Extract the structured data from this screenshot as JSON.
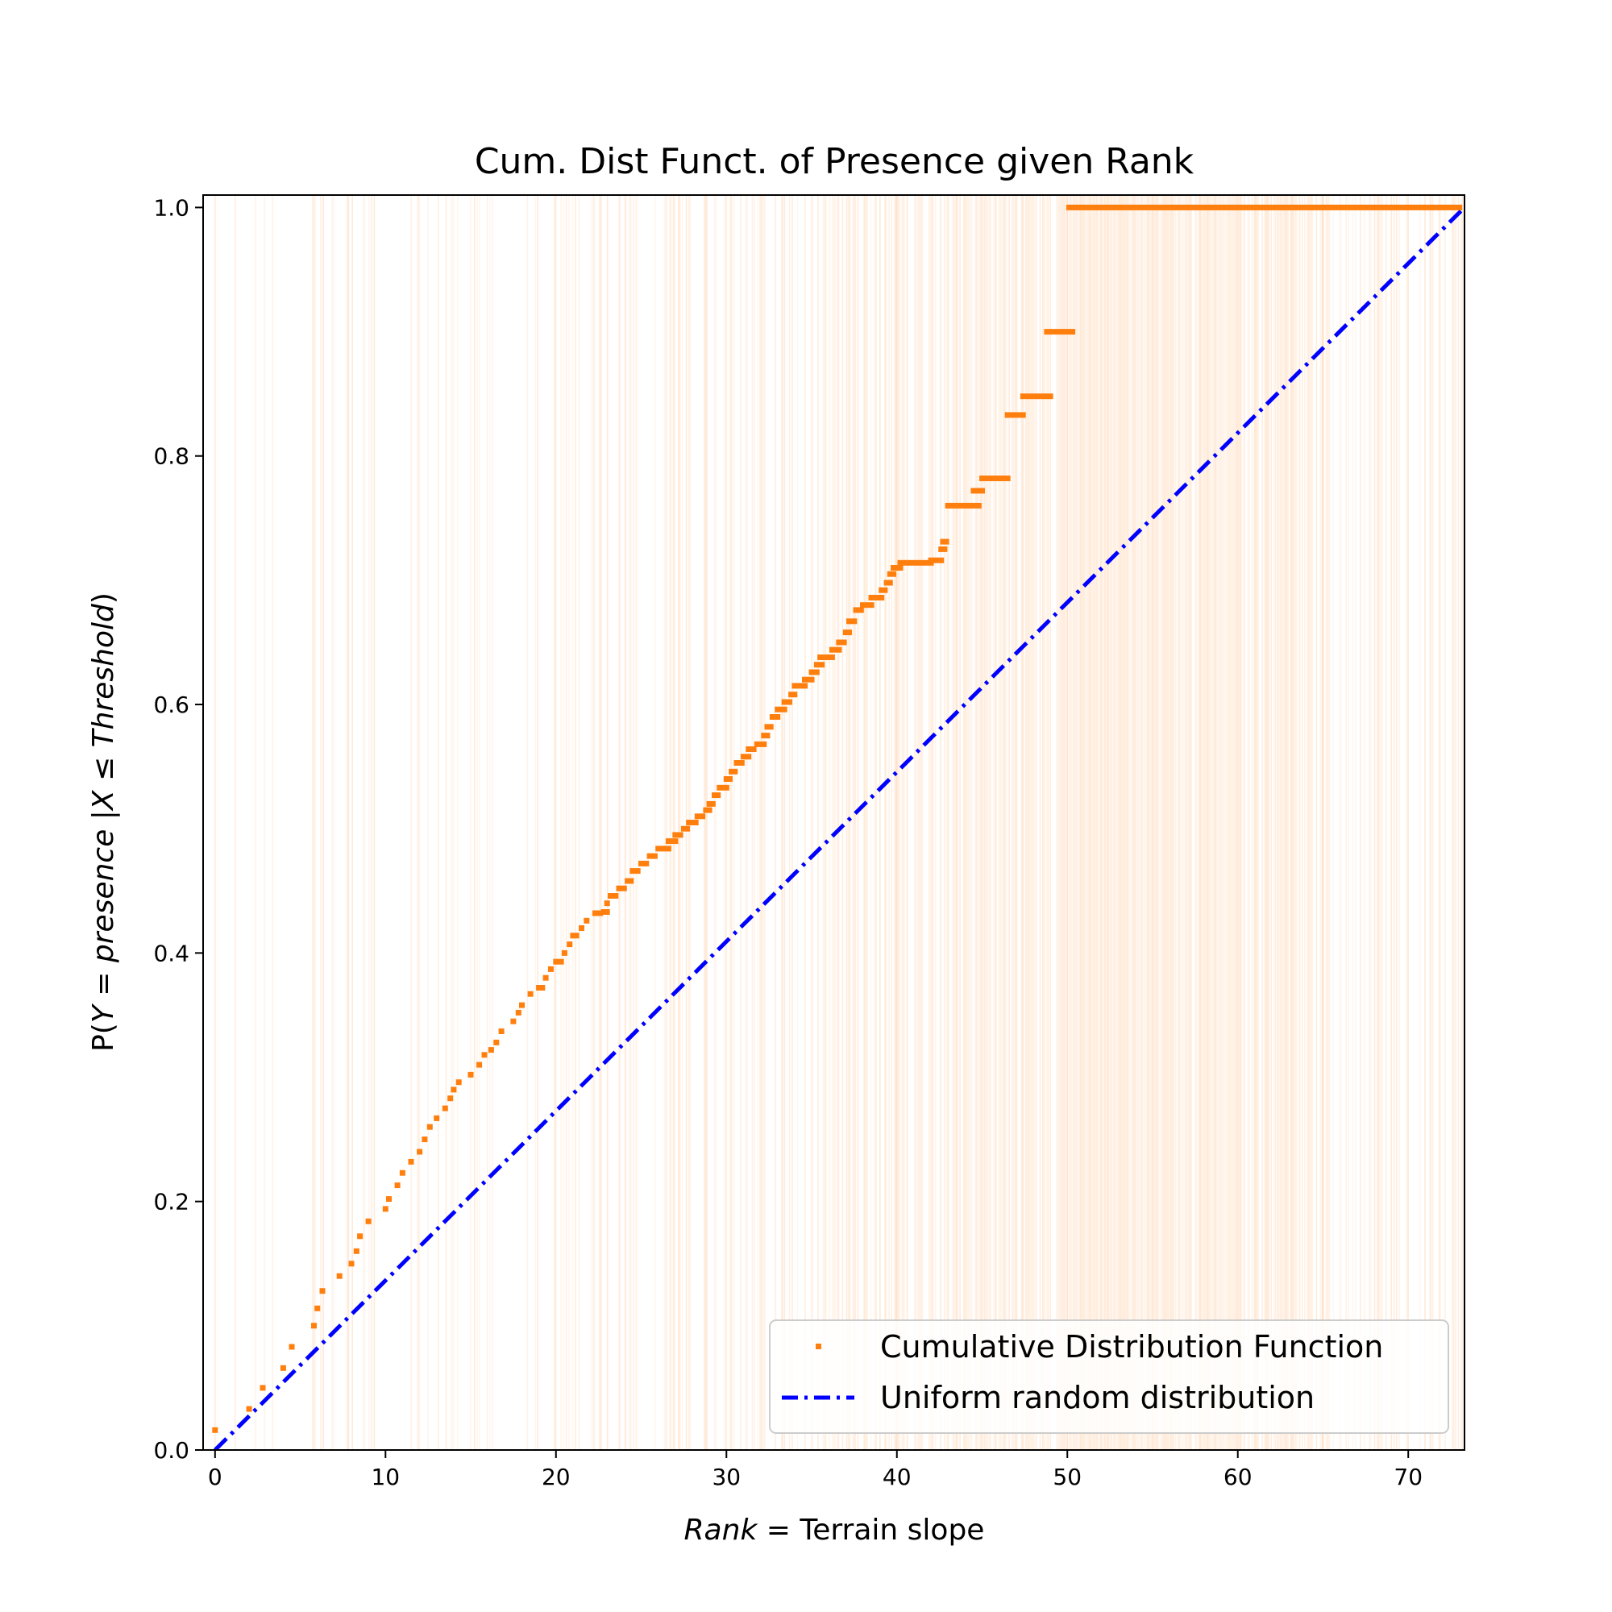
{
  "chart_data": {
    "type": "scatter",
    "title": "Cum. Dist Funct. of Presence given Rank",
    "xlabel": {
      "italic": "Rank",
      "rest": " = Terrain slope"
    },
    "ylabel": {
      "prefix": "P(",
      "italic": "Y = presence  |X ≤ Threshold",
      "suffix": ")"
    },
    "xlim": [
      -0.7,
      73.3
    ],
    "ylim": [
      0.0,
      1.01
    ],
    "x_ticks": [
      0,
      10,
      20,
      30,
      40,
      50,
      60,
      70
    ],
    "y_ticks": [
      0.0,
      0.2,
      0.4,
      0.6,
      0.8,
      1.0
    ],
    "x_tick_labels": [
      "0",
      "10",
      "20",
      "30",
      "40",
      "50",
      "60",
      "70"
    ],
    "y_tick_labels": [
      "0.0",
      "0.2",
      "0.4",
      "0.6",
      "0.8",
      "1.0"
    ],
    "grid": false,
    "legend_position": "lower-right",
    "colors": {
      "cdf": "#ff7f0e",
      "uniform": "#0000ff",
      "band": "#ff7f0e"
    },
    "series": [
      {
        "name": "Cumulative Distribution Function",
        "kind": "markers",
        "segments": [
          [
            0.0,
            0.016,
            0.0,
            0.016
          ],
          [
            2.0,
            0.033,
            2.0,
            0.033
          ],
          [
            2.8,
            0.05,
            2.8,
            0.05
          ],
          [
            4.0,
            0.066,
            4.0,
            0.066
          ],
          [
            4.5,
            0.083,
            4.5,
            0.083
          ],
          [
            5.8,
            0.1,
            5.8,
            0.1
          ],
          [
            6.0,
            0.114,
            6.0,
            0.114
          ],
          [
            6.3,
            0.128,
            6.3,
            0.128
          ],
          [
            7.3,
            0.14,
            7.3,
            0.14
          ],
          [
            8.0,
            0.15,
            8.0,
            0.15
          ],
          [
            8.3,
            0.16,
            8.3,
            0.16
          ],
          [
            8.5,
            0.172,
            8.5,
            0.172
          ],
          [
            9.0,
            0.184,
            9.0,
            0.184
          ],
          [
            10.0,
            0.194,
            10.0,
            0.194
          ],
          [
            10.2,
            0.202,
            10.2,
            0.202
          ],
          [
            10.7,
            0.213,
            10.7,
            0.213
          ],
          [
            11.0,
            0.223,
            11.0,
            0.223
          ],
          [
            11.5,
            0.232,
            11.5,
            0.232
          ],
          [
            12.0,
            0.24,
            12.0,
            0.24
          ],
          [
            12.3,
            0.25,
            12.3,
            0.25
          ],
          [
            12.6,
            0.26,
            12.6,
            0.26
          ],
          [
            13.0,
            0.267,
            13.0,
            0.267
          ],
          [
            13.5,
            0.275,
            13.5,
            0.275
          ],
          [
            13.8,
            0.283,
            13.8,
            0.283
          ],
          [
            14.0,
            0.29,
            14.0,
            0.29
          ],
          [
            14.3,
            0.296,
            14.3,
            0.296
          ],
          [
            15.0,
            0.302,
            15.0,
            0.302
          ],
          [
            15.5,
            0.31,
            15.5,
            0.31
          ],
          [
            15.8,
            0.318,
            15.8,
            0.318
          ],
          [
            16.2,
            0.322,
            16.2,
            0.322
          ],
          [
            16.5,
            0.328,
            16.5,
            0.328
          ],
          [
            16.8,
            0.337,
            16.8,
            0.337
          ],
          [
            17.5,
            0.345,
            17.5,
            0.345
          ],
          [
            17.8,
            0.352,
            17.8,
            0.352
          ],
          [
            18.0,
            0.358,
            18.0,
            0.358
          ],
          [
            18.5,
            0.367,
            18.5,
            0.367
          ],
          [
            19.0,
            0.372,
            19.2,
            0.372
          ],
          [
            19.4,
            0.38,
            19.4,
            0.38
          ],
          [
            19.7,
            0.387,
            19.7,
            0.387
          ],
          [
            20.0,
            0.393,
            20.3,
            0.393
          ],
          [
            20.5,
            0.4,
            20.5,
            0.4
          ],
          [
            20.8,
            0.407,
            20.8,
            0.407
          ],
          [
            21.0,
            0.414,
            21.2,
            0.414
          ],
          [
            21.5,
            0.42,
            21.5,
            0.42
          ],
          [
            21.8,
            0.426,
            21.8,
            0.426
          ],
          [
            22.3,
            0.432,
            22.6,
            0.432
          ],
          [
            22.8,
            0.433,
            23.0,
            0.433
          ],
          [
            23.0,
            0.44,
            23.0,
            0.44
          ],
          [
            23.2,
            0.446,
            23.5,
            0.446
          ],
          [
            23.7,
            0.452,
            24.0,
            0.452
          ],
          [
            24.2,
            0.458,
            24.4,
            0.458
          ],
          [
            24.5,
            0.466,
            24.8,
            0.466
          ],
          [
            25.0,
            0.472,
            25.3,
            0.472
          ],
          [
            25.5,
            0.478,
            25.8,
            0.478
          ],
          [
            26.0,
            0.484,
            26.6,
            0.484
          ],
          [
            26.6,
            0.49,
            27.0,
            0.49
          ],
          [
            27.0,
            0.495,
            27.3,
            0.495
          ],
          [
            27.5,
            0.5,
            27.7,
            0.5
          ],
          [
            27.8,
            0.505,
            28.2,
            0.505
          ],
          [
            28.3,
            0.51,
            28.6,
            0.51
          ],
          [
            28.8,
            0.515,
            29.0,
            0.515
          ],
          [
            29.0,
            0.52,
            29.2,
            0.52
          ],
          [
            29.3,
            0.527,
            29.5,
            0.527
          ],
          [
            29.6,
            0.533,
            30.0,
            0.533
          ],
          [
            30.0,
            0.54,
            30.2,
            0.54
          ],
          [
            30.3,
            0.546,
            30.5,
            0.546
          ],
          [
            30.6,
            0.553,
            30.9,
            0.553
          ],
          [
            31.0,
            0.558,
            31.3,
            0.558
          ],
          [
            31.3,
            0.564,
            31.6,
            0.564
          ],
          [
            31.8,
            0.568,
            32.2,
            0.568
          ],
          [
            32.2,
            0.575,
            32.4,
            0.575
          ],
          [
            32.4,
            0.582,
            32.6,
            0.582
          ],
          [
            32.7,
            0.59,
            33.0,
            0.59
          ],
          [
            33.0,
            0.596,
            33.4,
            0.596
          ],
          [
            33.4,
            0.602,
            33.7,
            0.602
          ],
          [
            33.8,
            0.608,
            34.0,
            0.608
          ],
          [
            34.0,
            0.615,
            34.6,
            0.615
          ],
          [
            34.6,
            0.62,
            35.0,
            0.62
          ],
          [
            35.0,
            0.626,
            35.3,
            0.626
          ],
          [
            35.3,
            0.632,
            35.6,
            0.632
          ],
          [
            35.5,
            0.638,
            36.2,
            0.638
          ],
          [
            36.2,
            0.644,
            36.6,
            0.644
          ],
          [
            36.6,
            0.65,
            36.9,
            0.65
          ],
          [
            37.0,
            0.658,
            37.2,
            0.658
          ],
          [
            37.2,
            0.667,
            37.5,
            0.667
          ],
          [
            37.6,
            0.676,
            37.9,
            0.676
          ],
          [
            38.0,
            0.68,
            38.5,
            0.68
          ],
          [
            38.5,
            0.686,
            39.1,
            0.686
          ],
          [
            39.1,
            0.692,
            39.3,
            0.692
          ],
          [
            39.4,
            0.698,
            39.6,
            0.698
          ],
          [
            39.6,
            0.705,
            39.8,
            0.705
          ],
          [
            39.8,
            0.71,
            40.2,
            0.71
          ],
          [
            40.2,
            0.714,
            42.0,
            0.714
          ],
          [
            42.0,
            0.716,
            42.6,
            0.716
          ],
          [
            42.6,
            0.725,
            42.8,
            0.725
          ],
          [
            42.7,
            0.731,
            42.9,
            0.731
          ],
          [
            43.0,
            0.76,
            44.8,
            0.76
          ],
          [
            44.5,
            0.772,
            45.0,
            0.772
          ],
          [
            45.0,
            0.782,
            46.5,
            0.782
          ],
          [
            46.5,
            0.833,
            47.4,
            0.833
          ],
          [
            47.4,
            0.848,
            49.0,
            0.848
          ],
          [
            48.8,
            0.9,
            50.3,
            0.9
          ],
          [
            50.1,
            1.0,
            73.0,
            1.0
          ]
        ]
      },
      {
        "name": "Uniform random distribution",
        "kind": "line",
        "x": [
          0,
          73.3
        ],
        "y": [
          0.0,
          1.0
        ]
      }
    ],
    "band_ranges": [
      [
        0,
        0.5,
        0.04
      ],
      [
        0.5,
        2,
        0.05
      ],
      [
        2,
        4,
        0.07
      ],
      [
        4,
        7,
        0.08
      ],
      [
        7,
        10,
        0.08
      ],
      [
        10,
        15,
        0.09
      ],
      [
        15,
        20,
        0.11
      ],
      [
        20,
        25,
        0.13
      ],
      [
        25,
        30,
        0.16
      ],
      [
        30,
        35,
        0.2
      ],
      [
        35,
        40,
        0.24
      ],
      [
        40,
        45,
        0.3
      ],
      [
        45,
        50,
        0.36
      ],
      [
        50,
        55,
        0.48
      ],
      [
        55,
        60,
        0.42
      ],
      [
        60,
        65,
        0.33
      ],
      [
        65,
        70,
        0.2
      ],
      [
        70,
        73.3,
        0.13
      ]
    ]
  }
}
